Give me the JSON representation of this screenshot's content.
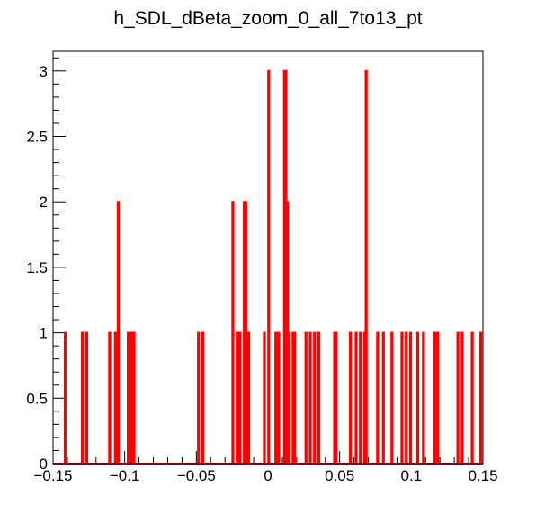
{
  "chart_data": {
    "type": "histogram",
    "title": "h_SDL_dBeta_zoom_0_all_7to13_pt",
    "xlabel": "",
    "ylabel": "",
    "xlim": [
      -0.15,
      0.15
    ],
    "ylim": [
      0,
      3.15
    ],
    "grid": false,
    "legend": "none",
    "bin_width": 0.0008,
    "line_color": "#ff0000",
    "x_ticks": [
      -0.15,
      -0.1,
      -0.05,
      0,
      0.05,
      0.1,
      0.15
    ],
    "x_tick_labels": [
      "−0.15",
      "−0.1",
      "−0.05",
      "0",
      "0.05",
      "0.1",
      "0.15"
    ],
    "y_ticks": [
      0,
      0.5,
      1,
      1.5,
      2,
      2.5,
      3
    ],
    "y_tick_labels": [
      "0",
      "0.5",
      "1",
      "1.5",
      "2",
      "2.5",
      "3"
    ],
    "bins": [
      {
        "x": -0.1415,
        "count": 1
      },
      {
        "x": -0.1295,
        "count": 1
      },
      {
        "x": -0.1265,
        "count": 1
      },
      {
        "x": -0.1105,
        "count": 1
      },
      {
        "x": -0.1065,
        "count": 1
      },
      {
        "x": -0.1045,
        "count": 2
      },
      {
        "x": -0.0975,
        "count": 1
      },
      {
        "x": -0.0955,
        "count": 1
      },
      {
        "x": -0.0935,
        "count": 1
      },
      {
        "x": -0.0485,
        "count": 1
      },
      {
        "x": -0.0455,
        "count": 1
      },
      {
        "x": -0.0245,
        "count": 2
      },
      {
        "x": -0.0215,
        "count": 1
      },
      {
        "x": -0.0195,
        "count": 1
      },
      {
        "x": -0.0165,
        "count": 2
      },
      {
        "x": -0.0155,
        "count": 2
      },
      {
        "x": -0.0135,
        "count": 1
      },
      {
        "x": -0.0025,
        "count": 1
      },
      {
        "x": 0.0005,
        "count": 3
      },
      {
        "x": 0.0055,
        "count": 1
      },
      {
        "x": 0.0075,
        "count": 1
      },
      {
        "x": 0.0115,
        "count": 3
      },
      {
        "x": 0.0125,
        "count": 3
      },
      {
        "x": 0.0135,
        "count": 2
      },
      {
        "x": 0.0145,
        "count": 1
      },
      {
        "x": 0.0175,
        "count": 1
      },
      {
        "x": 0.0185,
        "count": 1
      },
      {
        "x": 0.0265,
        "count": 1
      },
      {
        "x": 0.0295,
        "count": 1
      },
      {
        "x": 0.0325,
        "count": 1
      },
      {
        "x": 0.0355,
        "count": 1
      },
      {
        "x": 0.0465,
        "count": 1
      },
      {
        "x": 0.0475,
        "count": 1
      },
      {
        "x": 0.0575,
        "count": 1
      },
      {
        "x": 0.0615,
        "count": 1
      },
      {
        "x": 0.0645,
        "count": 1
      },
      {
        "x": 0.0675,
        "count": 1
      },
      {
        "x": 0.0685,
        "count": 3
      },
      {
        "x": 0.0765,
        "count": 1
      },
      {
        "x": 0.0805,
        "count": 1
      },
      {
        "x": 0.0865,
        "count": 1
      },
      {
        "x": 0.0935,
        "count": 1
      },
      {
        "x": 0.0965,
        "count": 1
      },
      {
        "x": 0.0995,
        "count": 1
      },
      {
        "x": 0.1045,
        "count": 1
      },
      {
        "x": 0.1085,
        "count": 1
      },
      {
        "x": 0.1165,
        "count": 1
      },
      {
        "x": 0.1185,
        "count": 1
      },
      {
        "x": 0.1325,
        "count": 1
      },
      {
        "x": 0.1355,
        "count": 1
      },
      {
        "x": 0.1425,
        "count": 1
      },
      {
        "x": 0.1485,
        "count": 1
      }
    ]
  }
}
